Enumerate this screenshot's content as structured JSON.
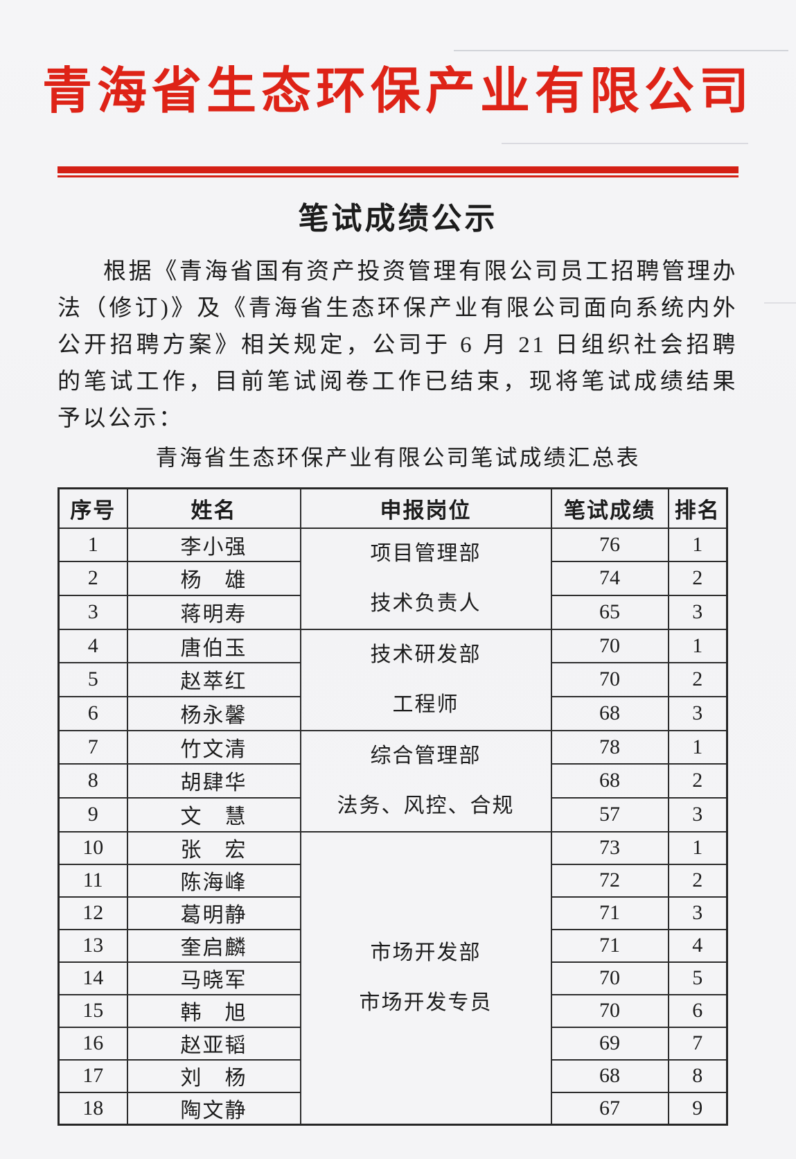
{
  "header": {
    "company_title": "青海省生态环保产业有限公司",
    "doc_title": "笔试成绩公示"
  },
  "body": {
    "paragraph": "根据《青海省国有资产投资管理有限公司员工招聘管理办法（修订)》及《青海省生态环保产业有限公司面向系统内外公开招聘方案》相关规定，公司于 6 月 21 日组织社会招聘的笔试工作，目前笔试阅卷工作已结束，现将笔试成绩结果予以公示："
  },
  "colors": {
    "accent_red": "#de2317",
    "paper": "#f4f4f6",
    "text": "#1c1c1c",
    "table_border": "#2c2c2c"
  },
  "table": {
    "caption": "青海省生态环保产业有限公司笔试成绩汇总表",
    "headers": [
      "序号",
      "姓名",
      "申报岗位",
      "笔试成绩",
      "排名"
    ],
    "position_groups": [
      {
        "dept": "项目管理部",
        "role": "技术负责人"
      },
      {
        "dept": "技术研发部",
        "role": "工程师"
      },
      {
        "dept": "综合管理部",
        "role": "法务、风控、合规"
      },
      {
        "dept": "市场开发部",
        "role": "市场开发专员"
      }
    ],
    "rows": [
      {
        "no": "1",
        "name": "李小强",
        "score": "76",
        "rank": "1"
      },
      {
        "no": "2",
        "name": "杨　雄",
        "score": "74",
        "rank": "2"
      },
      {
        "no": "3",
        "name": "蒋明寿",
        "score": "65",
        "rank": "3"
      },
      {
        "no": "4",
        "name": "唐伯玉",
        "score": "70",
        "rank": "1"
      },
      {
        "no": "5",
        "name": "赵萃红",
        "score": "70",
        "rank": "2"
      },
      {
        "no": "6",
        "name": "杨永馨",
        "score": "68",
        "rank": "3"
      },
      {
        "no": "7",
        "name": "竹文清",
        "score": "78",
        "rank": "1"
      },
      {
        "no": "8",
        "name": "胡肆华",
        "score": "68",
        "rank": "2"
      },
      {
        "no": "9",
        "name": "文　慧",
        "score": "57",
        "rank": "3"
      },
      {
        "no": "10",
        "name": "张　宏",
        "score": "73",
        "rank": "1"
      },
      {
        "no": "11",
        "name": "陈海峰",
        "score": "72",
        "rank": "2"
      },
      {
        "no": "12",
        "name": "葛明静",
        "score": "71",
        "rank": "3"
      },
      {
        "no": "13",
        "name": "奎启麟",
        "score": "71",
        "rank": "4"
      },
      {
        "no": "14",
        "name": "马晓军",
        "score": "70",
        "rank": "5"
      },
      {
        "no": "15",
        "name": "韩　旭",
        "score": "70",
        "rank": "6"
      },
      {
        "no": "16",
        "name": "赵亚韬",
        "score": "69",
        "rank": "7"
      },
      {
        "no": "17",
        "name": "刘　杨",
        "score": "68",
        "rank": "8"
      },
      {
        "no": "18",
        "name": "陶文静",
        "score": "67",
        "rank": "9"
      }
    ]
  }
}
